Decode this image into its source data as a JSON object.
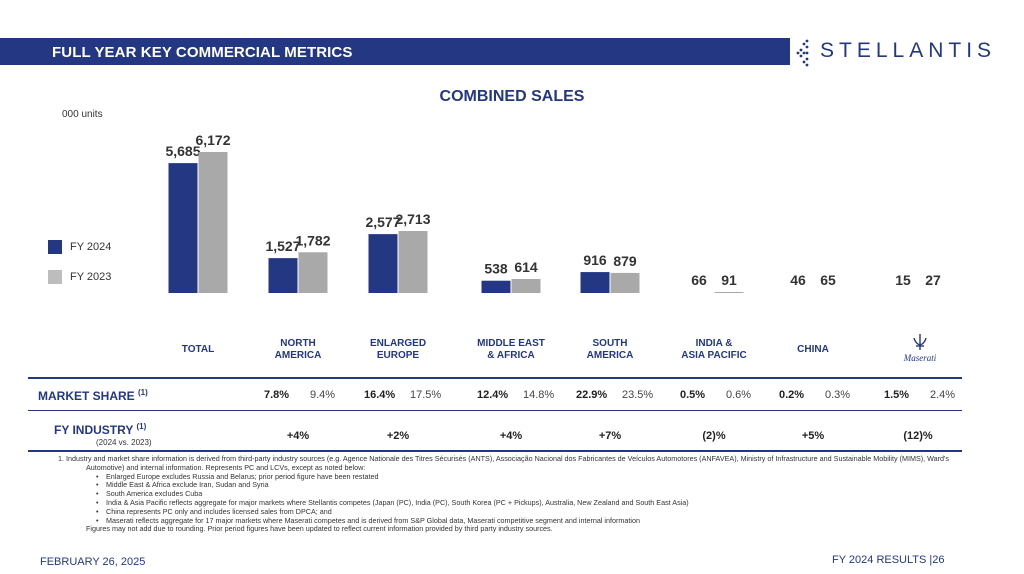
{
  "header": {
    "title": "FULL YEAR KEY COMMERCIAL METRICS",
    "brand": "STELLANTIS"
  },
  "colors": {
    "fy2024": "#243782",
    "fy2023": "#a9a9a9",
    "accent": "#243782"
  },
  "chart_data": {
    "type": "bar",
    "title": "COMBINED SALES",
    "ylabel": "000 units",
    "categories": [
      "TOTAL",
      "NORTH AMERICA",
      "ENLARGED EUROPE",
      "MIDDLE EAST & AFRICA",
      "SOUTH AMERICA",
      "INDIA & ASIA PACIFIC",
      "CHINA",
      "Maserati"
    ],
    "series": [
      {
        "name": "FY 2024",
        "values": [
          5685,
          1527,
          2577,
          538,
          916,
          66,
          46,
          15
        ],
        "labels": [
          "5,685",
          "1,527",
          "2,577",
          "538",
          "916",
          "66",
          "46",
          "15"
        ]
      },
      {
        "name": "FY 2023",
        "values": [
          6172,
          1782,
          2713,
          614,
          879,
          91,
          65,
          27
        ],
        "labels": [
          "6,172",
          "1,782",
          "2,713",
          "614",
          "879",
          "91",
          "65",
          "27"
        ]
      }
    ],
    "grid": false,
    "legend_position": "left"
  },
  "regions": [
    {
      "line1": "TOTAL",
      "line2": ""
    },
    {
      "line1": "NORTH",
      "line2": "AMERICA"
    },
    {
      "line1": "ENLARGED",
      "line2": "EUROPE"
    },
    {
      "line1": "MIDDLE EAST",
      "line2": "& AFRICA"
    },
    {
      "line1": "SOUTH",
      "line2": "AMERICA"
    },
    {
      "line1": "INDIA &",
      "line2": "ASIA PACIFIC"
    },
    {
      "line1": "CHINA",
      "line2": ""
    }
  ],
  "market_share": {
    "label": "MARKET SHARE",
    "note": "(1)",
    "values": [
      {
        "cur": "7.8%",
        "prev": "9.4%"
      },
      {
        "cur": "16.4%",
        "prev": "17.5%"
      },
      {
        "cur": "12.4%",
        "prev": "14.8%"
      },
      {
        "cur": "22.9%",
        "prev": "23.5%"
      },
      {
        "cur": "0.5%",
        "prev": "0.6%"
      },
      {
        "cur": "0.2%",
        "prev": "0.3%"
      },
      {
        "cur": "1.5%",
        "prev": "2.4%"
      }
    ]
  },
  "fy_industry": {
    "label": "FY INDUSTRY",
    "note": "(1)",
    "sublabel": "(2024 vs. 2023)",
    "values": [
      "+4%",
      "+2%",
      "+4%",
      "+7%",
      "(2)%",
      "+5%",
      "(12)%"
    ]
  },
  "footnotes": {
    "main": "1.        Industry and market share information is derived from third-party industry sources (e.g. Agence Nationale des Titres Sécurisés (ANTS), Associação Nacional dos Fabricantes de Veículos Automotores (ANFAVEA), Ministry of Infrastructure and Sustainable Mobility (MIMS), Ward's Automotive) and internal information.  Represents PC and LCVs, except as noted below:",
    "bullets": [
      "Enlarged Europe excludes Russia and Belarus; prior period figure have been restated",
      "Middle East & Africa exclude Iran, Sudan and Syria",
      "South America excludes Cuba",
      "India & Asia Pacific reflects aggregate for major markets where Stellantis competes (Japan (PC), India (PC), South Korea (PC + Pickups), Australia, New Zealand and South East Asia)",
      "China represents PC only and includes licensed sales from DPCA; and",
      "Maserati reflects aggregate for 17 major markets where Maserati competes and is derived from S&P Global data, Maserati competitive segment and internal information"
    ],
    "final": "Figures may not add due to rounding.  Prior period figures have been updated to reflect current information provided by third party industry sources."
  },
  "footer": {
    "date": "FEBRUARY 26, 2025",
    "right": "FY 2024 RESULTS  |26"
  }
}
